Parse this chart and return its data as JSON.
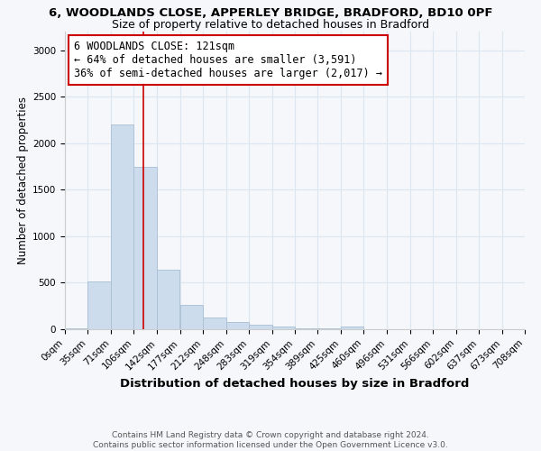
{
  "title_line1": "6, WOODLANDS CLOSE, APPERLEY BRIDGE, BRADFORD, BD10 0PF",
  "title_line2": "Size of property relative to detached houses in Bradford",
  "xlabel": "Distribution of detached houses by size in Bradford",
  "ylabel": "Number of detached properties",
  "footnote": "Contains HM Land Registry data © Crown copyright and database right 2024.\nContains public sector information licensed under the Open Government Licence v3.0.",
  "bar_edges": [
    0,
    35,
    71,
    106,
    142,
    177,
    212,
    248,
    283,
    319,
    354,
    389,
    425,
    460,
    496,
    531,
    566,
    602,
    637,
    673,
    708
  ],
  "bar_heights": [
    5,
    510,
    2200,
    1750,
    640,
    260,
    130,
    75,
    45,
    25,
    10,
    5,
    30,
    2,
    0,
    0,
    0,
    0,
    0,
    0
  ],
  "bar_color": "#cddcec",
  "bar_edge_color": "#a8bfd4",
  "property_line_x": 121,
  "property_line_color": "#cc0000",
  "annotation_line1": "6 WOODLANDS CLOSE: 121sqm",
  "annotation_line2": "← 64% of detached houses are smaller (3,591)",
  "annotation_line3": "36% of semi-detached houses are larger (2,017) →",
  "annotation_box_color": "#ffffff",
  "annotation_box_edge_color": "#cc0000",
  "ylim": [
    0,
    3200
  ],
  "yticks": [
    0,
    500,
    1000,
    1500,
    2000,
    2500,
    3000
  ],
  "tick_labels": [
    "0sqm",
    "35sqm",
    "71sqm",
    "106sqm",
    "142sqm",
    "177sqm",
    "212sqm",
    "248sqm",
    "283sqm",
    "319sqm",
    "354sqm",
    "389sqm",
    "425sqm",
    "460sqm",
    "496sqm",
    "531sqm",
    "566sqm",
    "602sqm",
    "637sqm",
    "673sqm",
    "708sqm"
  ],
  "bg_color": "#f5f7fa",
  "grid_color": "#dce6f0",
  "title_fontsize": 9.5,
  "subtitle_fontsize": 9,
  "xlabel_fontsize": 9.5,
  "ylabel_fontsize": 8.5,
  "tick_fontsize": 7.5,
  "annotation_fontsize": 8.5,
  "footnote_fontsize": 6.5
}
